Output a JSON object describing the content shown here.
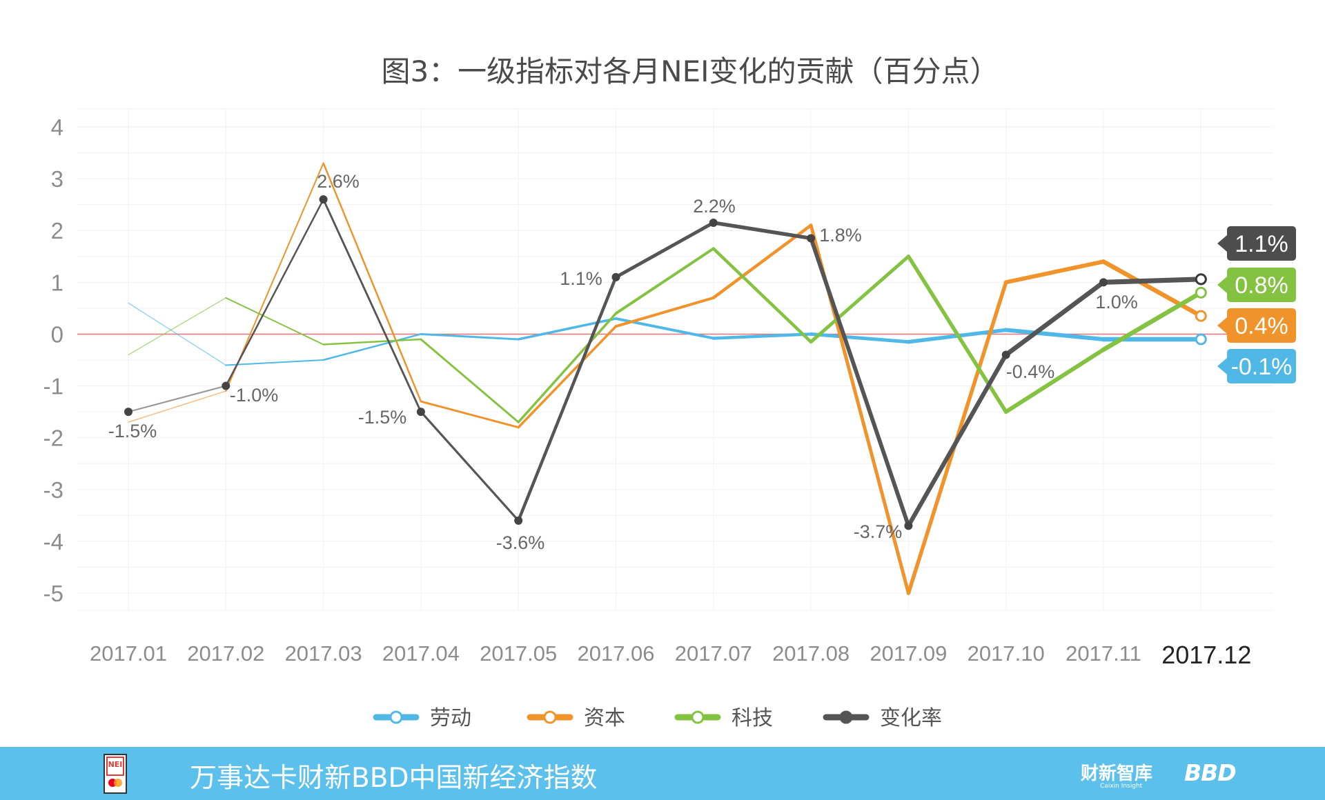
{
  "chart_data": {
    "type": "line",
    "title": "图3：一级指标对各月NEI变化的贡献（百分点）",
    "categories": [
      "2017.01",
      "2017.02",
      "2017.03",
      "2017.04",
      "2017.05",
      "2017.06",
      "2017.07",
      "2017.08",
      "2017.09",
      "2017.10",
      "2017.11",
      "2017.12"
    ],
    "yticks": [
      "4",
      "3",
      "2",
      "1",
      "0",
      "-1",
      "-2",
      "-3",
      "-4",
      "-5"
    ],
    "ylim": [
      -5,
      4
    ],
    "grid": true,
    "legend_position": "bottom",
    "series": [
      {
        "name": "劳动",
        "color": "#4fb8e6",
        "values": [
          0.6,
          -0.6,
          -0.5,
          0.0,
          -0.1,
          0.3,
          -0.08,
          0.0,
          -0.15,
          0.08,
          -0.1,
          -0.1
        ]
      },
      {
        "name": "资本",
        "color": "#f0932b",
        "values": [
          -1.7,
          -1.1,
          3.3,
          -1.3,
          -1.8,
          0.15,
          0.7,
          2.1,
          -5.0,
          1.0,
          1.4,
          0.35
        ]
      },
      {
        "name": "科技",
        "color": "#84c341",
        "values": [
          -0.4,
          0.7,
          -0.2,
          -0.1,
          -1.7,
          0.4,
          1.65,
          -0.15,
          1.5,
          -1.5,
          -0.3,
          0.8
        ]
      },
      {
        "name": "变化率",
        "color": "#555555",
        "values": [
          -1.5,
          -1.0,
          2.6,
          -1.5,
          -3.6,
          1.1,
          2.15,
          1.85,
          -3.7,
          -0.4,
          1.0,
          1.06
        ]
      }
    ],
    "rate_labels": [
      "-1.5%",
      "-1.0%",
      "2.6%",
      "-1.5%",
      "-3.6%",
      "1.1%",
      "2.2%",
      "1.8%",
      "-3.7%",
      "-0.4%",
      "1.0%"
    ],
    "end_tags": [
      {
        "text": "1.1%",
        "color": "#4d4d4d"
      },
      {
        "text": "0.8%",
        "color": "#84c341"
      },
      {
        "text": "0.4%",
        "color": "#f0932b"
      },
      {
        "text": "-0.1%",
        "color": "#4fb8e6"
      }
    ],
    "zero_line_color": "#e57373"
  },
  "footer": {
    "logo_text": "NEI",
    "title": "万事达卡财新BBD中国新经济指数",
    "brand_caixin": "财新智库",
    "brand_caixin_sub": "Caixin Insight",
    "brand_bbd": "BBD"
  }
}
